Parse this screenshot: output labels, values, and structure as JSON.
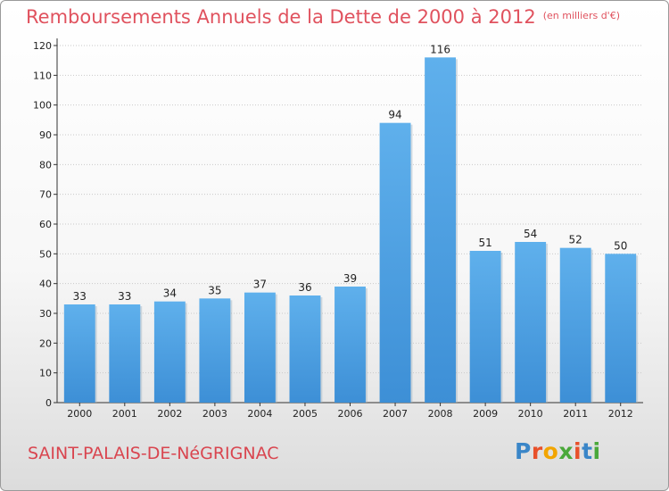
{
  "chart_data": {
    "type": "bar",
    "title": "Remboursements Annuels de la Dette de 2000 à 2012",
    "unit_note": "(en milliers d'€)",
    "categories": [
      "2000",
      "2001",
      "2002",
      "2003",
      "2004",
      "2005",
      "2006",
      "2007",
      "2008",
      "2009",
      "2010",
      "2011",
      "2012"
    ],
    "values": [
      33,
      33,
      34,
      35,
      37,
      36,
      39,
      94,
      116,
      51,
      54,
      52,
      50
    ],
    "data_labels": [
      "33",
      "33",
      "34",
      "35",
      "37",
      "36",
      "39",
      "94",
      "116",
      "51",
      "54",
      "52",
      "50"
    ],
    "ylim": [
      0,
      120
    ],
    "yticks": [
      "0",
      "10",
      "20",
      "30",
      "40",
      "50",
      "60",
      "70",
      "80",
      "90",
      "100",
      "110",
      "120"
    ],
    "grid": true,
    "bar_color": "#3d8fd6",
    "bar_color_light": "#5fb0ec",
    "title_color": "#e0525e"
  },
  "footer": {
    "commune": "SAINT-PALAIS-DE-NéGRIGNAC",
    "brand_letters": [
      "P",
      "r",
      "o",
      "x",
      "i",
      "t",
      "i"
    ],
    "brand_colors": [
      "#3a86c8",
      "#e8502a",
      "#f2a500",
      "#4aa83a",
      "#e8502a",
      "#3a86c8",
      "#4aa83a"
    ]
  }
}
